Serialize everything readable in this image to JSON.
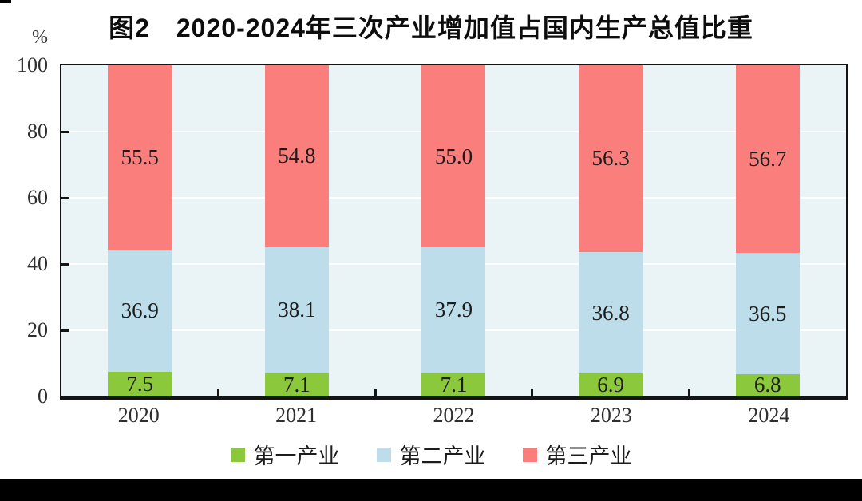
{
  "chart_data": {
    "type": "bar",
    "stacked": true,
    "title": "图2　2020-2024年三次产业增加值占国内生产总值比重",
    "categories": [
      "2020",
      "2021",
      "2022",
      "2023",
      "2024"
    ],
    "series": [
      {
        "name": "第一产业",
        "color": "#8CC83C",
        "values": [
          7.5,
          7.1,
          7.1,
          6.9,
          6.8
        ]
      },
      {
        "name": "第二产业",
        "color": "#BCDDE9",
        "values": [
          36.9,
          38.1,
          37.9,
          36.8,
          36.5
        ]
      },
      {
        "name": "第三产业",
        "color": "#FA7E7C",
        "values": [
          55.5,
          54.8,
          55.0,
          56.3,
          56.7
        ]
      }
    ],
    "ylabel": "%",
    "ylim": [
      0,
      100
    ],
    "yticks": [
      0,
      20,
      40,
      60,
      80,
      100
    ],
    "grid": true,
    "legend_position": "bottom",
    "plot_background": "#EAF3F6",
    "gridline_color": "#FFFFFF",
    "axis_color": "#141414",
    "value_label_decimals": 1
  }
}
